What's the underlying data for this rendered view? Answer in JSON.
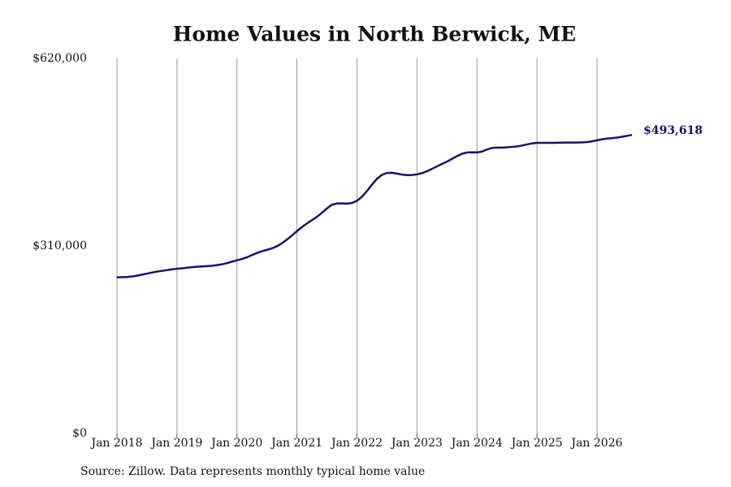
{
  "chart_data": {
    "type": "line",
    "title": "Home Values in North Berwick, ME",
    "source": "Source: Zillow. Data represents monthly typical home value",
    "x": [
      "2018-01",
      "2018-02",
      "2018-03",
      "2018-04",
      "2018-05",
      "2018-06",
      "2018-07",
      "2018-08",
      "2018-09",
      "2018-10",
      "2018-11",
      "2018-12",
      "2019-01",
      "2019-02",
      "2019-03",
      "2019-04",
      "2019-05",
      "2019-06",
      "2019-07",
      "2019-08",
      "2019-09",
      "2019-10",
      "2019-11",
      "2019-12",
      "2020-01",
      "2020-02",
      "2020-03",
      "2020-04",
      "2020-05",
      "2020-06",
      "2020-07",
      "2020-08",
      "2020-09",
      "2020-10",
      "2020-11",
      "2020-12",
      "2021-01",
      "2021-02",
      "2021-03",
      "2021-04",
      "2021-05",
      "2021-06",
      "2021-07",
      "2021-08",
      "2021-09",
      "2021-10",
      "2021-11",
      "2021-12",
      "2022-01",
      "2022-02",
      "2022-03",
      "2022-04",
      "2022-05",
      "2022-06",
      "2022-07",
      "2022-08",
      "2022-09",
      "2022-10",
      "2022-11",
      "2022-12",
      "2023-01",
      "2023-02",
      "2023-03",
      "2023-04",
      "2023-05",
      "2023-06",
      "2023-07",
      "2023-08",
      "2023-09",
      "2023-10",
      "2023-11",
      "2023-12",
      "2024-01",
      "2024-02",
      "2024-03",
      "2024-04",
      "2024-05",
      "2024-06",
      "2024-07",
      "2024-08",
      "2024-09",
      "2024-10",
      "2024-11",
      "2024-12",
      "2025-01",
      "2025-02",
      "2025-03",
      "2025-04",
      "2025-05",
      "2025-06",
      "2025-07",
      "2025-08",
      "2025-09",
      "2025-10",
      "2025-11",
      "2025-12",
      "2026-01",
      "2026-02",
      "2026-03",
      "2026-04",
      "2026-05",
      "2026-06",
      "2026-07",
      "2026-08"
    ],
    "series": [
      {
        "color": "#14146b",
        "values": [
          258000,
          258300,
          258700,
          259500,
          260800,
          262500,
          264300,
          266000,
          267500,
          268800,
          270000,
          271200,
          272200,
          273000,
          273900,
          274900,
          275600,
          276100,
          276600,
          277300,
          278300,
          279600,
          281600,
          284000,
          286300,
          288400,
          291200,
          294900,
          298300,
          301200,
          303500,
          306000,
          309500,
          314500,
          320600,
          327400,
          334500,
          341200,
          347200,
          352600,
          358200,
          364800,
          372100,
          378200,
          380200,
          380400,
          380000,
          381000,
          384600,
          391500,
          400800,
          411400,
          421000,
          427600,
          430600,
          431000,
          429600,
          428000,
          427100,
          427300,
          428300,
          430300,
          433500,
          437400,
          441600,
          445600,
          449400,
          453900,
          458500,
          462300,
          464600,
          464800,
          464600,
          466000,
          469500,
          472000,
          472500,
          472500,
          473000,
          473800,
          474500,
          476000,
          477800,
          479500,
          480400,
          480500,
          480500,
          480400,
          480600,
          480800,
          481000,
          481000,
          481000,
          481200,
          481800,
          483000,
          484600,
          486300,
          487500,
          488200,
          489200,
          490500,
          492000,
          493618
        ]
      }
    ],
    "annotations": [
      {
        "x": "2026-08",
        "y": 493618,
        "text": "$493,618"
      }
    ],
    "ylim": [
      0,
      620000
    ],
    "yticks": [
      {
        "value": 0,
        "label": "$0"
      },
      {
        "value": 310000,
        "label": "$310,000"
      },
      {
        "value": 620000,
        "label": "$620,000"
      }
    ],
    "xticks": [
      {
        "value": "2018-01",
        "label": "Jan 2018"
      },
      {
        "value": "2019-01",
        "label": "Jan 2019"
      },
      {
        "value": "2020-01",
        "label": "Jan 2020"
      },
      {
        "value": "2021-01",
        "label": "Jan 2021"
      },
      {
        "value": "2022-01",
        "label": "Jan 2022"
      },
      {
        "value": "2023-01",
        "label": "Jan 2023"
      },
      {
        "value": "2024-01",
        "label": "Jan 2024"
      },
      {
        "value": "2025-01",
        "label": "Jan 2025"
      },
      {
        "value": "2026-01",
        "label": "Jan 2026"
      }
    ],
    "grid": true
  }
}
